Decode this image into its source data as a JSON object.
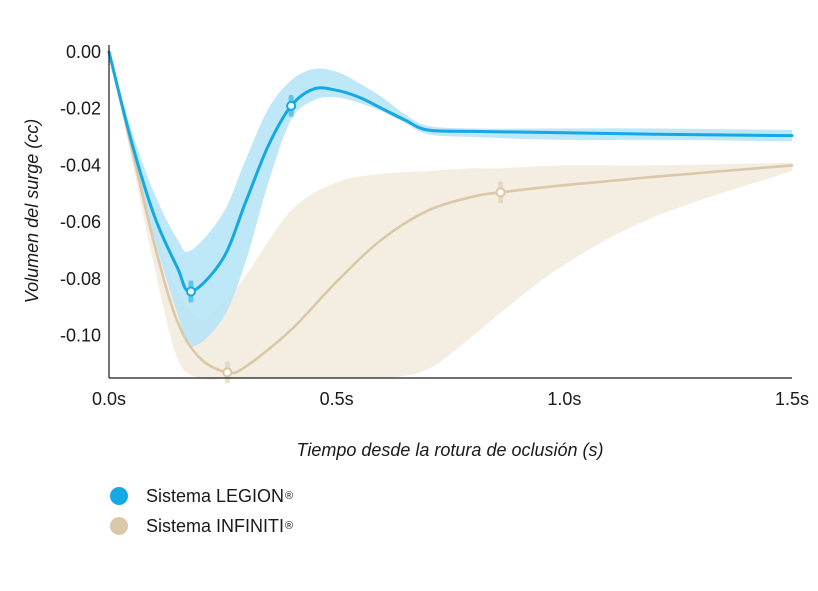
{
  "chart_data": {
    "type": "line",
    "xlabel": "Tiempo desde la rotura de oclusión (s)",
    "ylabel": "Volumen del surge (cc)",
    "xlim": [
      0,
      1.5
    ],
    "ylim": [
      -0.115,
      0.0
    ],
    "x_ticks": [
      0,
      0.5,
      1.0,
      1.5
    ],
    "x_tick_labels": [
      "0.0s",
      "0.5s",
      "1.0s",
      "1.5s"
    ],
    "y_ticks": [
      0.0,
      -0.02,
      -0.04,
      -0.06,
      -0.08,
      -0.1
    ],
    "y_tick_labels": [
      "0.00",
      "-0.02",
      "-0.04",
      "-0.06",
      "-0.08",
      "-0.10"
    ],
    "grid": false,
    "legend_position": "bottom-left",
    "series": [
      {
        "name": "Sistema LEGION",
        "name_suffix": "®",
        "color": "#14a8e4",
        "band_color": "#b3e3f6",
        "x": [
          0.0,
          0.05,
          0.1,
          0.15,
          0.18,
          0.25,
          0.3,
          0.35,
          0.4,
          0.45,
          0.5,
          0.55,
          0.6,
          0.65,
          0.7,
          0.8,
          1.0,
          1.2,
          1.5
        ],
        "y": [
          0.0,
          -0.032,
          -0.058,
          -0.076,
          -0.0845,
          -0.073,
          -0.053,
          -0.033,
          -0.019,
          -0.013,
          -0.0135,
          -0.016,
          -0.02,
          -0.024,
          -0.0275,
          -0.028,
          -0.0285,
          -0.029,
          -0.0295
        ],
        "lower": [
          0.0,
          -0.036,
          -0.066,
          -0.092,
          -0.104,
          -0.094,
          -0.074,
          -0.046,
          -0.024,
          -0.017,
          -0.016,
          -0.018,
          -0.021,
          -0.025,
          -0.029,
          -0.03,
          -0.031,
          -0.031,
          -0.0315
        ],
        "upper": [
          0.0,
          -0.028,
          -0.05,
          -0.066,
          -0.07,
          -0.057,
          -0.038,
          -0.02,
          -0.01,
          -0.006,
          -0.007,
          -0.011,
          -0.016,
          -0.022,
          -0.026,
          -0.027,
          -0.027,
          -0.027,
          -0.0275
        ],
        "markers": [
          {
            "x": 0.18,
            "y": -0.0845
          },
          {
            "x": 0.4,
            "y": -0.019
          }
        ]
      },
      {
        "name": "Sistema INFINITI",
        "name_suffix": "®",
        "color": "#dac8a8",
        "band_color": "#f4ede1",
        "x": [
          0.0,
          0.05,
          0.1,
          0.15,
          0.2,
          0.26,
          0.3,
          0.4,
          0.5,
          0.6,
          0.7,
          0.8,
          0.86,
          1.0,
          1.2,
          1.5
        ],
        "y": [
          0.0,
          -0.034,
          -0.068,
          -0.095,
          -0.108,
          -0.113,
          -0.111,
          -0.098,
          -0.081,
          -0.066,
          -0.056,
          -0.051,
          -0.0495,
          -0.047,
          -0.044,
          -0.04
        ],
        "lower": [
          0.0,
          -0.038,
          -0.076,
          -0.108,
          -0.115,
          -0.115,
          -0.115,
          -0.115,
          -0.115,
          -0.115,
          -0.112,
          -0.1,
          -0.092,
          -0.075,
          -0.058,
          -0.042
        ],
        "upper": [
          0.0,
          -0.03,
          -0.062,
          -0.084,
          -0.094,
          -0.087,
          -0.079,
          -0.056,
          -0.046,
          -0.043,
          -0.042,
          -0.041,
          -0.041,
          -0.04,
          -0.04,
          -0.039
        ],
        "markers": [
          {
            "x": 0.26,
            "y": -0.113
          },
          {
            "x": 0.86,
            "y": -0.0495
          }
        ]
      }
    ]
  }
}
